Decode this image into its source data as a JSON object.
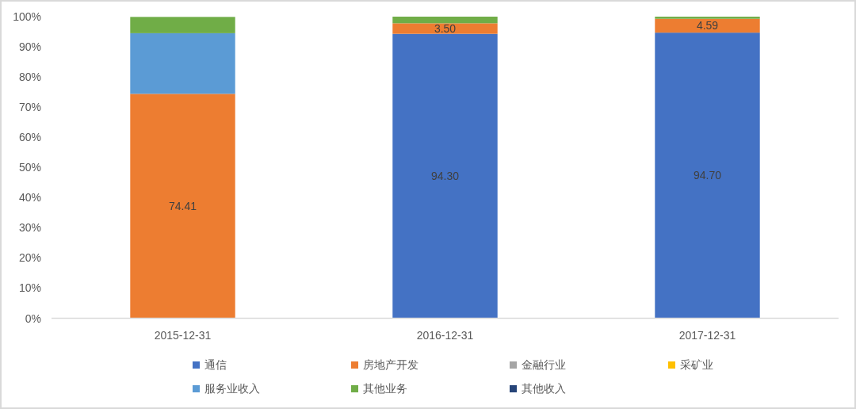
{
  "chart_data": {
    "type": "bar",
    "stacked": true,
    "categories": [
      "2015-12-31",
      "2016-12-31",
      "2017-12-31"
    ],
    "series": [
      {
        "name": "通信",
        "color": "#4472c4",
        "values": [
          null,
          94.3,
          94.7
        ],
        "value_labels": [
          null,
          "94.30",
          "94.70"
        ]
      },
      {
        "name": "房地产开发",
        "color": "#ed7d31",
        "values": [
          74.41,
          3.5,
          4.59
        ],
        "value_labels": [
          "74.41",
          "3.50",
          "4.59"
        ]
      },
      {
        "name": "金融行业",
        "color": "#a5a5a5",
        "values": [
          null,
          null,
          null
        ]
      },
      {
        "name": "采矿业",
        "color": "#ffc000",
        "values": [
          null,
          null,
          null
        ]
      },
      {
        "name": "服务业收入",
        "color": "#5b9bd5",
        "values": [
          20.1,
          null,
          null
        ]
      },
      {
        "name": "其他业务",
        "color": "#70ad47",
        "values": [
          5.4,
          2.2,
          0.7
        ]
      },
      {
        "name": "其他收入",
        "color": "#264478",
        "values": [
          null,
          null,
          null
        ]
      }
    ],
    "ylim": [
      0,
      100
    ],
    "yticks": [
      {
        "value": 0,
        "label": "0%"
      },
      {
        "value": 10,
        "label": "10%"
      },
      {
        "value": 20,
        "label": "20%"
      },
      {
        "value": 30,
        "label": "30%"
      },
      {
        "value": 40,
        "label": "40%"
      },
      {
        "value": 50,
        "label": "50%"
      },
      {
        "value": 60,
        "label": "60%"
      },
      {
        "value": 70,
        "label": "70%"
      },
      {
        "value": 80,
        "label": "80%"
      },
      {
        "value": 90,
        "label": "90%"
      },
      {
        "value": 100,
        "label": "100%"
      }
    ],
    "legend": "bottom"
  }
}
